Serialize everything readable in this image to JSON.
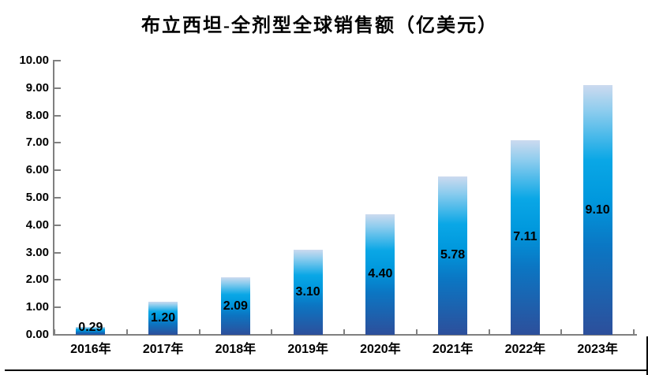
{
  "chart_data": {
    "type": "bar",
    "title": "布立西坦-全剂型全球销售额（亿美元）",
    "categories": [
      "2016年",
      "2017年",
      "2018年",
      "2019年",
      "2020年",
      "2021年",
      "2022年",
      "2023年"
    ],
    "values": [
      0.29,
      1.2,
      2.09,
      3.1,
      4.4,
      5.78,
      7.11,
      9.1
    ],
    "data_labels": [
      "0.29",
      "1.20",
      "2.09",
      "3.10",
      "4.40",
      "5.78",
      "7.11",
      "9.10"
    ],
    "xlabel": "",
    "ylabel": "",
    "ylim": [
      0,
      10
    ],
    "y_tick_step": 1,
    "y_tick_labels": [
      "0.00",
      "1.00",
      "2.00",
      "3.00",
      "4.00",
      "5.00",
      "6.00",
      "7.00",
      "8.00",
      "9.00",
      "10.00"
    ],
    "grid": false,
    "legend": "none",
    "data_label_position": "inside-center",
    "bar_color_gradient": [
      [
        "0%",
        "#ccdaef"
      ],
      [
        "10%",
        "#8fcdee"
      ],
      [
        "30%",
        "#0aa7e6"
      ],
      [
        "46%",
        "#0098dd"
      ],
      [
        "65%",
        "#0b76c3"
      ],
      [
        "100%",
        "#2d4f9b"
      ]
    ],
    "axis_color": "#808080",
    "text_color": "#000000"
  },
  "page": {
    "background": "#ffffff",
    "border_color": "#000000"
  }
}
